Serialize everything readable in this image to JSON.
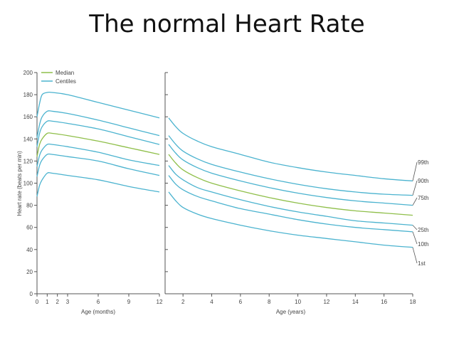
{
  "title": "The normal Heart Rate",
  "chart_data": {
    "type": "line",
    "ylabel": "Heart rate (beats per min)",
    "ylim": [
      0,
      200
    ],
    "yticks": [
      "0",
      "20",
      "40",
      "60",
      "80",
      "100",
      "120",
      "140",
      "160",
      "180",
      "200"
    ],
    "legend": {
      "placement": "top-left",
      "entries": [
        {
          "name": "Median",
          "color": "#8fbf4a"
        },
        {
          "name": "Centiles",
          "color": "#4bb3cf"
        }
      ]
    },
    "colors": {
      "median": "#8fbf4a",
      "centile": "#4bb3cf",
      "axis": "#555555"
    },
    "panels": [
      {
        "id": "infant",
        "xlabel": "Age (months)",
        "xlim": [
          0,
          12
        ],
        "xticks": [
          "0",
          "1",
          "2",
          "3",
          "6",
          "9",
          "12"
        ],
        "series": [
          {
            "centile": "1st",
            "x": [
              0,
              0.25,
              0.5,
              1,
              1.5,
              3,
              6,
              9,
              12
            ],
            "y": [
              88,
              98,
              103,
              109,
              109,
              107,
              103,
              97,
              92
            ]
          },
          {
            "centile": "10th",
            "x": [
              0,
              0.25,
              0.5,
              1,
              1.5,
              3,
              6,
              9,
              12
            ],
            "y": [
              106,
              116,
              121,
              126,
              126,
              124,
              120,
              113,
              107
            ]
          },
          {
            "centile": "25th",
            "x": [
              0,
              0.25,
              0.5,
              1,
              1.5,
              3,
              6,
              9,
              12
            ],
            "y": [
              115,
              125,
              130,
              135,
              135,
              133,
              128,
              121,
              116
            ]
          },
          {
            "centile": "Median",
            "x": [
              0,
              0.25,
              0.5,
              1,
              1.5,
              3,
              6,
              9,
              12
            ],
            "y": [
              124,
              135,
              140,
              145,
              145,
              143,
              138,
              132,
              126
            ]
          },
          {
            "centile": "75th",
            "x": [
              0,
              0.25,
              0.5,
              1,
              1.5,
              3,
              6,
              9,
              12
            ],
            "y": [
              133,
              145,
              151,
              156,
              156,
              154,
              149,
              142,
              135
            ]
          },
          {
            "centile": "90th",
            "x": [
              0,
              0.25,
              0.5,
              1,
              1.5,
              3,
              6,
              9,
              12
            ],
            "y": [
              141,
              153,
              160,
              165,
              165,
              163,
              157,
              150,
              143
            ]
          },
          {
            "centile": "99th",
            "x": [
              0,
              0.25,
              0.5,
              1,
              1.5,
              3,
              6,
              9,
              12
            ],
            "y": [
              160,
              172,
              180,
              182,
              182,
              180,
              173,
              166,
              159
            ]
          }
        ]
      },
      {
        "id": "child",
        "xlabel": "Age (years)",
        "xlim": [
          1,
          18
        ],
        "xticks": [
          "2",
          "4",
          "6",
          "8",
          "10",
          "12",
          "14",
          "16",
          "18"
        ],
        "series": [
          {
            "centile": "1st",
            "x": [
              1,
              1.5,
              2,
              3,
              4,
              6,
              8,
              10,
              12,
              14,
              16,
              18
            ],
            "y": [
              92,
              84,
              78,
              72,
              68,
              62,
              57,
              53,
              50,
              47,
              44,
              42
            ]
          },
          {
            "centile": "10th",
            "x": [
              1,
              1.5,
              2,
              3,
              4,
              6,
              8,
              10,
              12,
              14,
              16,
              18
            ],
            "y": [
              107,
              99,
              94,
              88,
              84,
              77,
              72,
              67,
              63,
              60,
              58,
              56
            ]
          },
          {
            "centile": "25th",
            "x": [
              1,
              1.5,
              2,
              3,
              4,
              6,
              8,
              10,
              12,
              14,
              16,
              18
            ],
            "y": [
              116,
              108,
              103,
              96,
              92,
              85,
              79,
              74,
              70,
              66,
              64,
              62
            ]
          },
          {
            "centile": "Median",
            "x": [
              1,
              1.5,
              2,
              3,
              4,
              6,
              8,
              10,
              12,
              14,
              16,
              18
            ],
            "y": [
              126,
              118,
              112,
              105,
              100,
              93,
              87,
              82,
              78,
              75,
              73,
              71
            ]
          },
          {
            "centile": "75th",
            "x": [
              1,
              1.5,
              2,
              3,
              4,
              6,
              8,
              10,
              12,
              14,
              16,
              18
            ],
            "y": [
              135,
              127,
              121,
              114,
              109,
              102,
              96,
              91,
              87,
              84,
              82,
              80
            ]
          },
          {
            "centile": "90th",
            "x": [
              1,
              1.5,
              2,
              3,
              4,
              6,
              8,
              10,
              12,
              14,
              16,
              18
            ],
            "y": [
              143,
              135,
              129,
              122,
              117,
              110,
              104,
              99,
              95,
              92,
              90,
              89
            ]
          },
          {
            "centile": "99th",
            "x": [
              1,
              1.5,
              2,
              3,
              4,
              6,
              8,
              10,
              12,
              14,
              16,
              18
            ],
            "y": [
              159,
              151,
              145,
              138,
              133,
              126,
              119,
              114,
              110,
              107,
              104,
              102
            ]
          }
        ]
      }
    ],
    "centile_labels": [
      "99th",
      "90th",
      "75th",
      "25th",
      "10th",
      "1st"
    ]
  }
}
